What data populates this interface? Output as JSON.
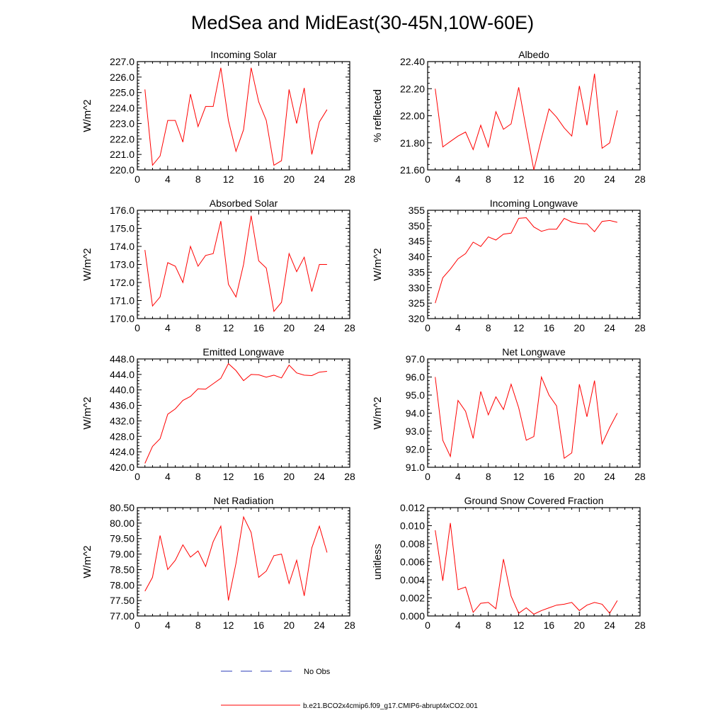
{
  "figure_title": "MedSea and MidEast(30-45N,10W-60E)",
  "legend": [
    {
      "label": "No Obs",
      "color": "#2b3bb8",
      "style": "dashed"
    },
    {
      "label": "b.e21.BCO2x4cmip6.f09_g17.CMIP6-abrupt4xCO2.001",
      "color": "#ff0000",
      "style": "solid"
    }
  ],
  "chart_data": [
    {
      "type": "line",
      "title": "Incoming Solar",
      "xlabel": "",
      "ylabel": "W/m^2",
      "xlim": [
        0,
        28
      ],
      "ylim": [
        220,
        227
      ],
      "x_ticks": [
        0,
        4,
        8,
        12,
        16,
        20,
        24,
        28
      ],
      "x_tick_labels": [
        "0",
        "4",
        "8",
        "12",
        "16",
        "20",
        "24",
        "28"
      ],
      "y_ticks": [
        220,
        221,
        222,
        223,
        224,
        225,
        226,
        227
      ],
      "y_tick_labels": [
        "220.0",
        "221.0",
        "222.0",
        "223.0",
        "224.0",
        "225.0",
        "226.0",
        "227.0"
      ],
      "series": [
        {
          "name": "b.e21.BCO2x4cmip6.f09_g17.CMIP6-abrupt4xCO2.001",
          "color": "#ff0000",
          "x": [
            1,
            2,
            3,
            4,
            5,
            6,
            7,
            8,
            9,
            10,
            11,
            12,
            13,
            14,
            15,
            16,
            17,
            18,
            19,
            20,
            21,
            22,
            23,
            24,
            25
          ],
          "values": [
            225.2,
            220.3,
            220.9,
            223.2,
            223.2,
            221.8,
            224.9,
            222.8,
            224.1,
            224.1,
            226.6,
            223.2,
            221.2,
            222.6,
            226.6,
            224.4,
            223.2,
            220.3,
            220.6,
            225.2,
            223.0,
            225.3,
            221.0,
            223.1,
            223.9
          ]
        }
      ]
    },
    {
      "type": "line",
      "title": "Albedo",
      "xlabel": "",
      "ylabel": "% reflected",
      "xlim": [
        0,
        28
      ],
      "ylim": [
        21.6,
        22.4
      ],
      "x_ticks": [
        0,
        4,
        8,
        12,
        16,
        20,
        24,
        28
      ],
      "x_tick_labels": [
        "0",
        "4",
        "8",
        "12",
        "16",
        "20",
        "24",
        "28"
      ],
      "y_ticks": [
        21.6,
        21.8,
        22.0,
        22.2,
        22.4
      ],
      "y_tick_labels": [
        "21.60",
        "21.80",
        "22.00",
        "22.20",
        "22.40"
      ],
      "series": [
        {
          "name": "b.e21.BCO2x4cmip6.f09_g17.CMIP6-abrupt4xCO2.001",
          "color": "#ff0000",
          "x": [
            1,
            2,
            3,
            4,
            5,
            6,
            7,
            8,
            9,
            10,
            11,
            12,
            13,
            14,
            15,
            16,
            17,
            18,
            19,
            20,
            21,
            22,
            23,
            24,
            25
          ],
          "values": [
            22.2,
            21.77,
            21.81,
            21.85,
            21.88,
            21.75,
            21.93,
            21.77,
            22.03,
            21.9,
            21.94,
            22.21,
            21.9,
            21.6,
            21.83,
            22.05,
            21.99,
            21.91,
            21.85,
            22.22,
            21.93,
            22.31,
            21.76,
            21.8,
            22.04
          ]
        }
      ]
    },
    {
      "type": "line",
      "title": "Absorbed Solar",
      "xlabel": "",
      "ylabel": "W/m^2",
      "xlim": [
        0,
        28
      ],
      "ylim": [
        170,
        176
      ],
      "x_ticks": [
        0,
        4,
        8,
        12,
        16,
        20,
        24,
        28
      ],
      "x_tick_labels": [
        "0",
        "4",
        "8",
        "12",
        "16",
        "20",
        "24",
        "28"
      ],
      "y_ticks": [
        170,
        171,
        172,
        173,
        174,
        175,
        176
      ],
      "y_tick_labels": [
        "170.0",
        "171.0",
        "172.0",
        "173.0",
        "174.0",
        "175.0",
        "176.0"
      ],
      "series": [
        {
          "name": "b.e21.BCO2x4cmip6.f09_g17.CMIP6-abrupt4xCO2.001",
          "color": "#ff0000",
          "x": [
            1,
            2,
            3,
            4,
            5,
            6,
            7,
            8,
            9,
            10,
            11,
            12,
            13,
            14,
            15,
            16,
            17,
            18,
            19,
            20,
            21,
            22,
            23,
            24,
            25
          ],
          "values": [
            173.8,
            170.7,
            171.2,
            173.1,
            172.9,
            172.0,
            174.0,
            172.9,
            173.5,
            173.6,
            175.4,
            171.9,
            171.2,
            173.0,
            175.7,
            173.2,
            172.8,
            170.4,
            170.9,
            173.6,
            172.6,
            173.4,
            171.5,
            173.0,
            173.0
          ]
        }
      ]
    },
    {
      "type": "line",
      "title": "Incoming Longwave",
      "xlabel": "",
      "ylabel": "W/m^2",
      "xlim": [
        0,
        28
      ],
      "ylim": [
        320,
        355
      ],
      "x_ticks": [
        0,
        4,
        8,
        12,
        16,
        20,
        24,
        28
      ],
      "x_tick_labels": [
        "0",
        "4",
        "8",
        "12",
        "16",
        "20",
        "24",
        "28"
      ],
      "y_ticks": [
        320,
        325,
        330,
        335,
        340,
        345,
        350,
        355
      ],
      "y_tick_labels": [
        "320",
        "325",
        "330",
        "335",
        "340",
        "345",
        "350",
        "355"
      ],
      "series": [
        {
          "name": "b.e21.BCO2x4cmip6.f09_g17.CMIP6-abrupt4xCO2.001",
          "color": "#ff0000",
          "x": [
            1,
            2,
            3,
            4,
            5,
            6,
            7,
            8,
            9,
            10,
            11,
            12,
            13,
            14,
            15,
            16,
            17,
            18,
            19,
            20,
            21,
            22,
            23,
            24,
            25
          ],
          "values": [
            325.0,
            333.2,
            336.0,
            339.3,
            341.0,
            344.7,
            343.3,
            346.4,
            345.4,
            347.3,
            347.6,
            352.4,
            352.6,
            349.6,
            348.2,
            348.9,
            348.9,
            352.4,
            351.2,
            350.7,
            350.6,
            348.1,
            351.4,
            351.7,
            351.1
          ]
        }
      ]
    },
    {
      "type": "line",
      "title": "Emitted Longwave",
      "xlabel": "",
      "ylabel": "W/m^2",
      "xlim": [
        0,
        28
      ],
      "ylim": [
        420,
        448
      ],
      "x_ticks": [
        0,
        4,
        8,
        12,
        16,
        20,
        24,
        28
      ],
      "x_tick_labels": [
        "0",
        "4",
        "8",
        "12",
        "16",
        "20",
        "24",
        "28"
      ],
      "y_ticks": [
        420,
        424,
        428,
        432,
        436,
        440,
        444,
        448
      ],
      "y_tick_labels": [
        "420.0",
        "424.0",
        "428.0",
        "432.0",
        "436.0",
        "440.0",
        "444.0",
        "448.0"
      ],
      "series": [
        {
          "name": "b.e21.BCO2x4cmip6.f09_g17.CMIP6-abrupt4xCO2.001",
          "color": "#ff0000",
          "x": [
            1,
            2,
            3,
            4,
            5,
            6,
            7,
            8,
            9,
            10,
            11,
            12,
            13,
            14,
            15,
            16,
            17,
            18,
            19,
            20,
            21,
            22,
            23,
            24,
            25
          ],
          "values": [
            421.0,
            425.4,
            427.4,
            433.7,
            435.1,
            437.3,
            438.3,
            440.3,
            440.2,
            441.6,
            443.0,
            446.8,
            445.0,
            442.4,
            444.0,
            443.9,
            443.3,
            443.8,
            443.1,
            446.4,
            444.4,
            443.8,
            443.7,
            444.6,
            444.8
          ]
        }
      ]
    },
    {
      "type": "line",
      "title": "Net Longwave",
      "xlabel": "",
      "ylabel": "W/m^2",
      "xlim": [
        0,
        28
      ],
      "ylim": [
        91,
        97
      ],
      "x_ticks": [
        0,
        4,
        8,
        12,
        16,
        20,
        24,
        28
      ],
      "x_tick_labels": [
        "0",
        "4",
        "8",
        "12",
        "16",
        "20",
        "24",
        "28"
      ],
      "y_ticks": [
        91,
        92,
        93,
        94,
        95,
        96,
        97
      ],
      "y_tick_labels": [
        "91.0",
        "92.0",
        "93.0",
        "94.0",
        "95.0",
        "96.0",
        "97.0"
      ],
      "series": [
        {
          "name": "b.e21.BCO2x4cmip6.f09_g17.CMIP6-abrupt4xCO2.001",
          "color": "#ff0000",
          "x": [
            1,
            2,
            3,
            4,
            5,
            6,
            7,
            8,
            9,
            10,
            11,
            12,
            13,
            14,
            15,
            16,
            17,
            18,
            19,
            20,
            21,
            22,
            23,
            24,
            25
          ],
          "values": [
            96.0,
            92.5,
            91.6,
            94.7,
            94.1,
            92.6,
            95.2,
            93.9,
            94.9,
            94.2,
            95.6,
            94.3,
            92.5,
            92.7,
            96.0,
            95.0,
            94.4,
            91.5,
            91.8,
            95.6,
            93.8,
            95.8,
            92.3,
            93.2,
            94.0
          ]
        }
      ]
    },
    {
      "type": "line",
      "title": "Net Radiation",
      "xlabel": "",
      "ylabel": "W/m^2",
      "xlim": [
        0,
        28
      ],
      "ylim": [
        77.0,
        80.5
      ],
      "x_ticks": [
        0,
        4,
        8,
        12,
        16,
        20,
        24,
        28
      ],
      "x_tick_labels": [
        "0",
        "4",
        "8",
        "12",
        "16",
        "20",
        "24",
        "28"
      ],
      "y_ticks": [
        77.0,
        77.5,
        78.0,
        78.5,
        79.0,
        79.5,
        80.0,
        80.5
      ],
      "y_tick_labels": [
        "77.00",
        "77.50",
        "78.00",
        "78.50",
        "79.00",
        "79.50",
        "80.00",
        "80.50"
      ],
      "series": [
        {
          "name": "b.e21.BCO2x4cmip6.f09_g17.CMIP6-abrupt4xCO2.001",
          "color": "#ff0000",
          "x": [
            1,
            2,
            3,
            4,
            5,
            6,
            7,
            8,
            9,
            10,
            11,
            12,
            13,
            14,
            15,
            16,
            17,
            18,
            19,
            20,
            21,
            22,
            23,
            24,
            25
          ],
          "values": [
            77.8,
            78.25,
            79.6,
            78.5,
            78.8,
            79.3,
            78.9,
            79.1,
            78.6,
            79.4,
            79.9,
            77.5,
            78.7,
            80.2,
            79.7,
            78.25,
            78.45,
            78.95,
            79.0,
            78.05,
            78.8,
            77.65,
            79.2,
            79.9,
            79.05
          ]
        }
      ]
    },
    {
      "type": "line",
      "title": "Ground Snow Covered Fraction",
      "xlabel": "",
      "ylabel": "unitless",
      "xlim": [
        0,
        28
      ],
      "ylim": [
        0,
        0.012
      ],
      "x_ticks": [
        0,
        4,
        8,
        12,
        16,
        20,
        24,
        28
      ],
      "x_tick_labels": [
        "0",
        "4",
        "8",
        "12",
        "16",
        "20",
        "24",
        "28"
      ],
      "y_ticks": [
        0,
        0.002,
        0.004,
        0.006,
        0.008,
        0.01,
        0.012
      ],
      "y_tick_labels": [
        "0.000",
        "0.002",
        "0.004",
        "0.006",
        "0.008",
        "0.010",
        "0.012"
      ],
      "series": [
        {
          "name": "b.e21.BCO2x4cmip6.f09_g17.CMIP6-abrupt4xCO2.001",
          "color": "#ff0000",
          "x": [
            1,
            2,
            3,
            4,
            5,
            6,
            7,
            8,
            9,
            10,
            11,
            12,
            13,
            14,
            15,
            16,
            17,
            18,
            19,
            20,
            21,
            22,
            23,
            24,
            25
          ],
          "values": [
            0.0095,
            0.0039,
            0.0103,
            0.0029,
            0.0032,
            0.0004,
            0.0014,
            0.0015,
            0.0008,
            0.0063,
            0.0022,
            0.0003,
            0.0009,
            0.0002,
            0.0006,
            0.0009,
            0.0012,
            0.0013,
            0.0015,
            0.0006,
            0.0012,
            0.0015,
            0.0013,
            0.0003,
            0.0017
          ]
        }
      ]
    }
  ]
}
